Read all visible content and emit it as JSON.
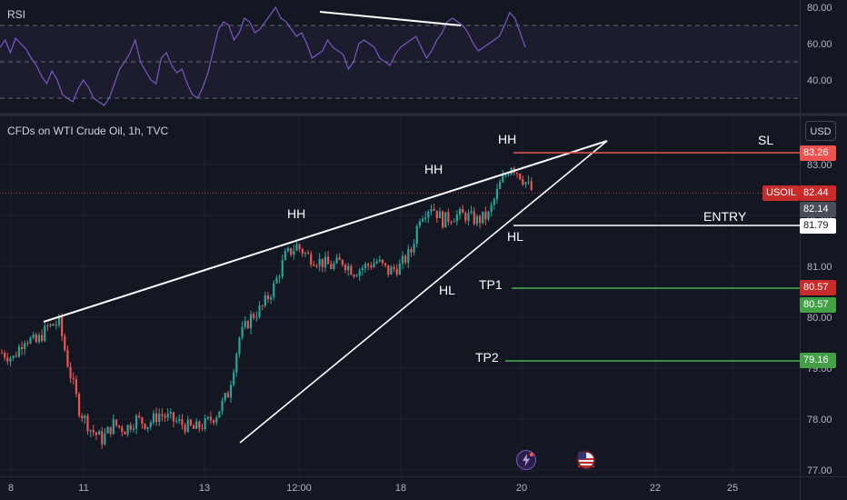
{
  "rsi_panel": {
    "title": "RSI",
    "y_ticks": [
      "80.00",
      "60.00",
      "40.00"
    ],
    "tick_values": [
      80,
      60,
      40
    ],
    "levels": [
      70,
      50,
      30
    ],
    "range": [
      22,
      84
    ],
    "line_color": "#7e57c2",
    "values": [
      58,
      62,
      55,
      63,
      60,
      57,
      52,
      48,
      42,
      38,
      45,
      40,
      32,
      30,
      28,
      35,
      40,
      36,
      30,
      28,
      26,
      30,
      38,
      46,
      50,
      55,
      62,
      50,
      45,
      40,
      38,
      52,
      55,
      48,
      44,
      46,
      38,
      32,
      30,
      36,
      44,
      56,
      68,
      72,
      70,
      62,
      66,
      74,
      72,
      66,
      68,
      72,
      76,
      80,
      74,
      72,
      68,
      64,
      66,
      60,
      52,
      54,
      56,
      62,
      58,
      56,
      54,
      46,
      50,
      60,
      62,
      60,
      58,
      52,
      50,
      48,
      54,
      58,
      60,
      62,
      64,
      58,
      52,
      56,
      62,
      66,
      72,
      74,
      72,
      70,
      66,
      60,
      56,
      58,
      60,
      62,
      64,
      70,
      77,
      74,
      66,
      58
    ]
  },
  "main_chart": {
    "title": "CFDs on WTI Crude Oil, 1h, TVC",
    "currency_button": "USD",
    "y_ticks": [
      "83.00",
      "82.00",
      "81.00",
      "80.00",
      "79.00",
      "78.00",
      "77.00"
    ],
    "tick_values": [
      83,
      82,
      81,
      80,
      79,
      78,
      77
    ],
    "x_ticks": [
      "8",
      "11",
      "13",
      "12:00",
      "18",
      "20",
      "22",
      "25"
    ],
    "up_color": "#26a69a",
    "down_color": "#ef5350",
    "symbol_tag": "USOIL",
    "current_price": "82.44",
    "price_tags": {
      "sl": "83.26",
      "current": "82.44",
      "marker": "82.14",
      "entry": "81.79",
      "tp1": "80.57",
      "tp1_dup": "80.57",
      "tp2": "79.16"
    }
  },
  "annotations": {
    "hh1": "HH",
    "hh2": "HH",
    "hh3": "HH",
    "hl1": "HL",
    "hl2": "HL",
    "sl": "SL",
    "entry": "ENTRY",
    "tp1": "TP1",
    "tp2": "TP2"
  },
  "chart_data": {
    "type": "candlestick",
    "title": "CFDs on WTI Crude Oil, 1h, TVC",
    "ylim": [
      76.9,
      83.9
    ],
    "price_levels": {
      "sl": 83.26,
      "current": 82.44,
      "entry": 81.79,
      "tp1": 80.57,
      "tp2": 79.16
    },
    "x_categories": [
      "8",
      "11",
      "13",
      "12:00",
      "18",
      "20",
      "22",
      "25"
    ],
    "close_path": [
      [
        0,
        79.3
      ],
      [
        4,
        79.2
      ],
      [
        8,
        79.6
      ],
      [
        12,
        79.5
      ],
      [
        16,
        79.8
      ],
      [
        20,
        79.9
      ],
      [
        23,
        79.1
      ],
      [
        27,
        78.2
      ],
      [
        31,
        77.8
      ],
      [
        35,
        77.6
      ],
      [
        39,
        77.9
      ],
      [
        43,
        77.8
      ],
      [
        47,
        78.0
      ],
      [
        51,
        77.9
      ],
      [
        55,
        78.1
      ],
      [
        59,
        78.0
      ],
      [
        63,
        77.9
      ],
      [
        67,
        77.8
      ],
      [
        71,
        77.9
      ],
      [
        75,
        78.1
      ],
      [
        79,
        78.5
      ],
      [
        83,
        79.6
      ],
      [
        87,
        80.0
      ],
      [
        91,
        80.2
      ],
      [
        95,
        80.6
      ],
      [
        99,
        81.2
      ],
      [
        103,
        81.4
      ],
      [
        107,
        81.2
      ],
      [
        111,
        81.1
      ],
      [
        115,
        81.0
      ],
      [
        119,
        81.1
      ],
      [
        123,
        80.9
      ],
      [
        127,
        81.0
      ],
      [
        131,
        81.1
      ],
      [
        135,
        80.9
      ],
      [
        139,
        81.0
      ],
      [
        143,
        81.3
      ],
      [
        146,
        82.0
      ],
      [
        150,
        82.2
      ],
      [
        154,
        81.9
      ],
      [
        158,
        82.0
      ],
      [
        162,
        82.0
      ],
      [
        166,
        81.9
      ],
      [
        170,
        82.0
      ],
      [
        174,
        82.6
      ],
      [
        178,
        83.0
      ],
      [
        181,
        82.8
      ],
      [
        185,
        82.5
      ]
    ]
  }
}
